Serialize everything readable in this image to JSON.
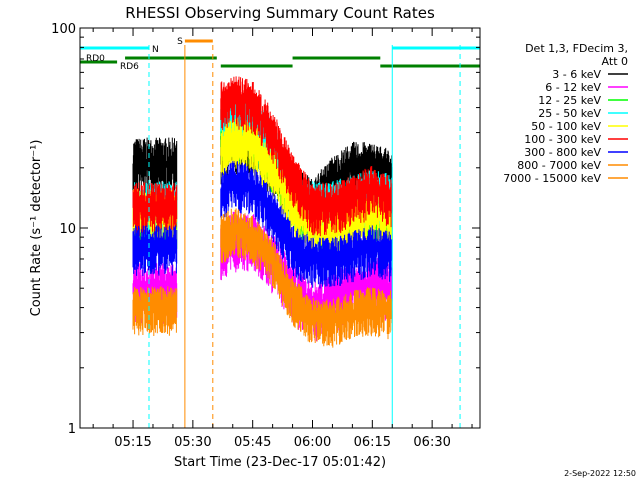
{
  "title": "RHESSI Observing Summary Count Rates",
  "footer_date": "2-Sep-2022 12:50",
  "legend": {
    "header": [
      "Det 1,3, FDecim 3,",
      "Att 0"
    ],
    "entries": [
      {
        "label": "3 - 6 keV",
        "color": "#000000"
      },
      {
        "label": "6 - 12 keV",
        "color": "#ff00ff"
      },
      {
        "label": "12 - 25 keV",
        "color": "#00ff00"
      },
      {
        "label": "25 - 50 keV",
        "color": "#00ffff"
      },
      {
        "label": "50 - 100 keV",
        "color": "#ffff00"
      },
      {
        "label": "100 - 300 keV",
        "color": "#ff0000"
      },
      {
        "label": "300 - 800 keV",
        "color": "#0000ff"
      },
      {
        "label": "800 - 7000 keV",
        "color": "#ff8c00"
      },
      {
        "label": "7000 - 15000 keV",
        "color": "#ff8c00"
      }
    ]
  },
  "chart_data": {
    "type": "line",
    "title": "RHESSI Observing Summary Count Rates",
    "xlabel": "Start Time (23-Dec-17 05:01:42)",
    "ylabel": "Count Rate (s⁻¹ detector⁻¹)",
    "yscale": "log",
    "xlim": [
      "05:01:42",
      "06:42:00"
    ],
    "ylim": [
      1,
      100
    ],
    "x_ticks": [
      "05:15",
      "05:30",
      "05:45",
      "06:00",
      "06:15",
      "06:30"
    ],
    "y_ticks": [
      "1",
      "10",
      "100"
    ],
    "grid": false,
    "legend_position": "right",
    "data_segments": [
      [
        "05:15",
        "05:26"
      ],
      [
        "05:37",
        "06:20"
      ]
    ],
    "series": [
      {
        "name": "3 - 6 keV",
        "color": "#000000",
        "x": [
          "05:15",
          "05:26",
          "05:37",
          "05:40",
          "05:45",
          "05:50",
          "05:55",
          "06:00",
          "06:05",
          "06:10",
          "06:15",
          "06:20"
        ],
        "y": [
          21,
          21,
          25,
          28,
          27,
          22,
          16,
          13,
          17,
          20,
          20,
          18
        ]
      },
      {
        "name": "6 - 12 keV",
        "color": "#ff00ff",
        "x": [
          "05:15",
          "05:26",
          "05:37",
          "05:40",
          "05:45",
          "05:50",
          "05:55",
          "06:00",
          "06:05",
          "06:10",
          "06:15",
          "06:20"
        ],
        "y": [
          5,
          5,
          8,
          9,
          9,
          7,
          5,
          4,
          4.5,
          5,
          5.5,
          5
        ]
      },
      {
        "name": "12 - 25 keV",
        "color": "#00ff00",
        "x": [
          "05:15",
          "05:26",
          "05:37",
          "05:40",
          "05:45",
          "05:50",
          "05:55",
          "06:00",
          "06:05",
          "06:10",
          "06:15",
          "06:20"
        ],
        "y": [
          11,
          11,
          28,
          32,
          30,
          22,
          14,
          11,
          11,
          12,
          13,
          12
        ]
      },
      {
        "name": "25 - 50 keV",
        "color": "#00ffff",
        "x": [
          "05:15",
          "05:26",
          "05:37",
          "05:40",
          "05:45",
          "05:50",
          "05:55",
          "06:00",
          "06:05",
          "06:10",
          "06:15",
          "06:20"
        ],
        "y": [
          13,
          13,
          33,
          38,
          35,
          26,
          16,
          13,
          13,
          14,
          15,
          14
        ]
      },
      {
        "name": "50 - 100 keV",
        "color": "#ffff00",
        "x": [
          "05:15",
          "05:26",
          "05:37",
          "05:40",
          "05:45",
          "05:50",
          "05:55",
          "06:00",
          "06:05",
          "06:10",
          "06:15",
          "06:20"
        ],
        "y": [
          12,
          12,
          24,
          28,
          26,
          20,
          13,
          10,
          10,
          11,
          12,
          11
        ]
      },
      {
        "name": "100 - 300 keV",
        "color": "#ff0000",
        "x": [
          "05:15",
          "05:26",
          "05:37",
          "05:40",
          "05:45",
          "05:50",
          "05:55",
          "06:00",
          "06:05",
          "06:10",
          "06:15",
          "06:20"
        ],
        "y": [
          13,
          13,
          42,
          45,
          42,
          30,
          18,
          13,
          13,
          14,
          16,
          14
        ]
      },
      {
        "name": "300 - 800 keV",
        "color": "#0000ff",
        "x": [
          "05:15",
          "05:26",
          "05:37",
          "05:40",
          "05:45",
          "05:50",
          "05:55",
          "06:00",
          "06:05",
          "06:10",
          "06:15",
          "06:20"
        ],
        "y": [
          8,
          8,
          15,
          17,
          16,
          12,
          8,
          7,
          7,
          7.5,
          8,
          7.5
        ]
      },
      {
        "name": "800 - 7000 keV",
        "color": "#ff8c00",
        "x": [
          "05:15",
          "05:26",
          "05:37",
          "05:40",
          "05:45",
          "05:50",
          "05:55",
          "06:00",
          "06:05",
          "06:10",
          "06:15",
          "06:20"
        ],
        "y": [
          4,
          4,
          9,
          10,
          9,
          7,
          4.5,
          3.5,
          3.5,
          3.8,
          4,
          3.8
        ]
      }
    ],
    "annotations": [
      {
        "label": "RD0",
        "color": "#008000"
      },
      {
        "label": "RD6",
        "color": "#008000"
      },
      {
        "label": "N",
        "color": "#00ffff"
      },
      {
        "label": "S",
        "color": "#ff8c00"
      }
    ]
  }
}
